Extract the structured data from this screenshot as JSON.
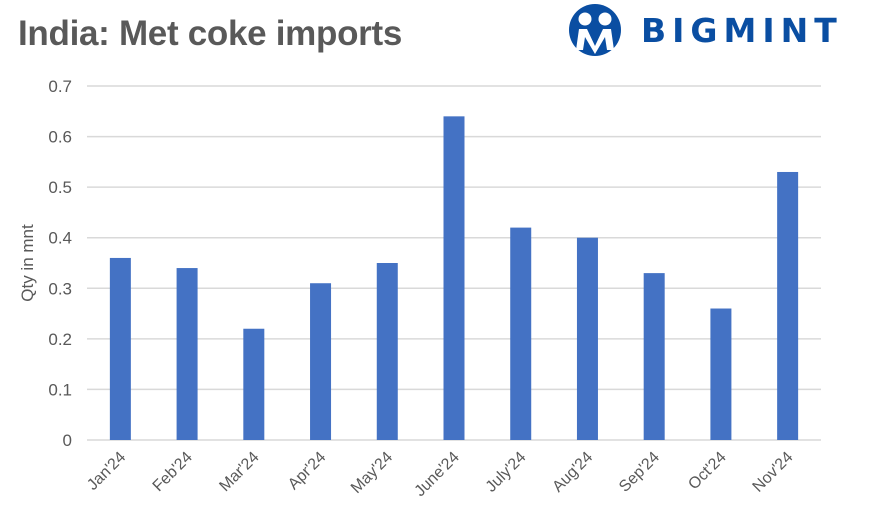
{
  "header": {
    "title": "India: Met coke imports",
    "brand": "BIGMINT",
    "brand_color": "#0a4ea2"
  },
  "colors": {
    "bar": "#4472c4",
    "grid": "#d9d9d9",
    "text": "#595959"
  },
  "chart_data": {
    "type": "bar",
    "title": "India: Met coke imports",
    "xlabel": "",
    "ylabel": "Qty in mnt",
    "categories": [
      "Jan'24",
      "Feb'24",
      "Mar'24",
      "Apr'24",
      "May'24",
      "June'24",
      "July'24",
      "Aug'24",
      "Sep'24",
      "Oct'24",
      "Nov'24"
    ],
    "values": [
      0.36,
      0.34,
      0.22,
      0.31,
      0.35,
      0.64,
      0.42,
      0.4,
      0.33,
      0.26,
      0.53
    ],
    "ylim": [
      0,
      0.7
    ],
    "yticks": [
      "0",
      "0.1",
      "0.2",
      "0.3",
      "0.4",
      "0.5",
      "0.6",
      "0.7"
    ],
    "grid": true,
    "legend": null
  }
}
